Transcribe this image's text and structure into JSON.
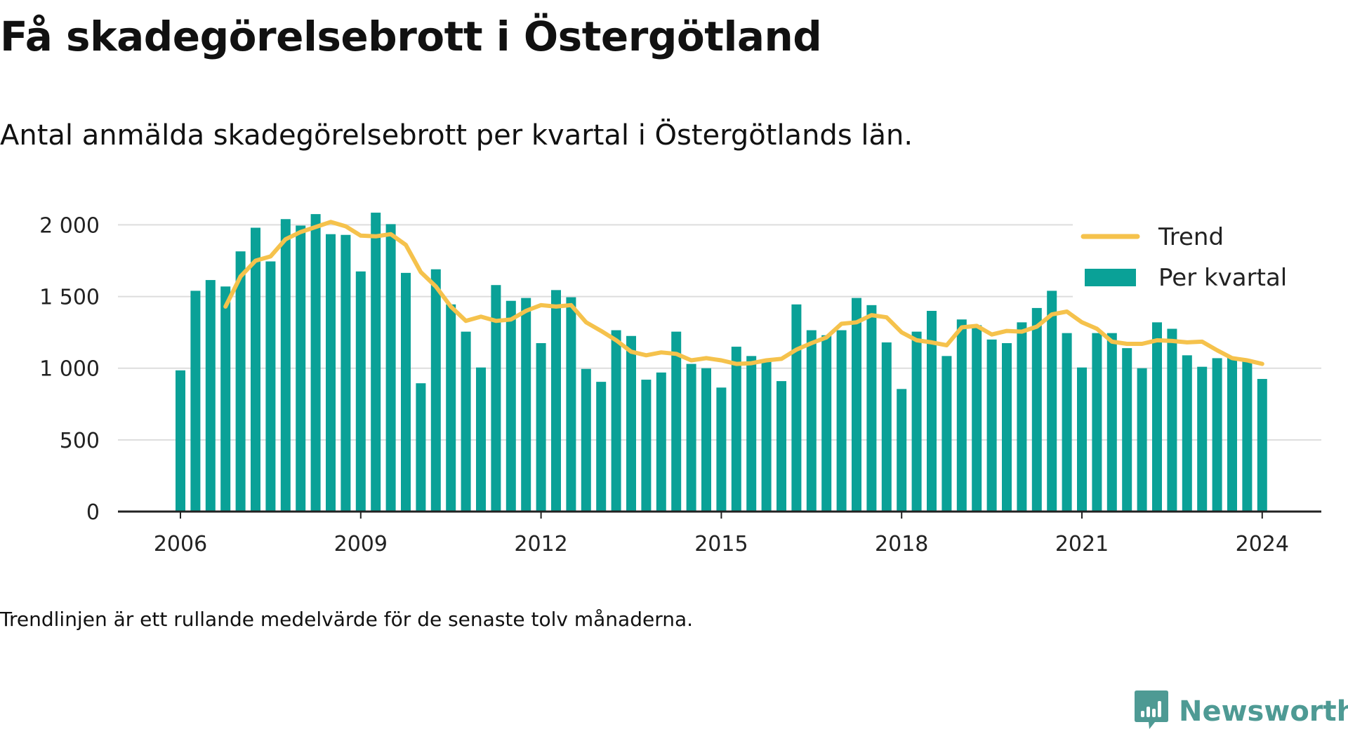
{
  "header": {
    "title": "Få skadegörelsebrott i Östergötland",
    "subtitle": "Antal anmälda skadegörelsebrott per kvartal i Östergötlands län."
  },
  "footnote": "Trendlinjen är ett rullande medelvärde för de senaste tolv månaderna.",
  "brand": {
    "name": "Newsworthy",
    "icon": "newsworthy-logo-icon",
    "color": "#4e9a94"
  },
  "chart_data": {
    "type": "bar",
    "ylim": [
      0,
      2100
    ],
    "yticks": [
      0,
      500,
      1000,
      1500,
      2000
    ],
    "ytick_labels": [
      "0",
      "500",
      "1 000",
      "1 500",
      "2 000"
    ],
    "xticks": [
      "2006",
      "2009",
      "2012",
      "2015",
      "2018",
      "2021",
      "2024"
    ],
    "grid": true,
    "legend_position": "top-right",
    "legend": [
      "Trend",
      "Per kvartal"
    ],
    "colors": {
      "bars": "#0aa197",
      "trend": "#f5c24c",
      "grid": "#dddddd",
      "axis": "#222222"
    },
    "categories": [
      "2006 Q1",
      "2006 Q2",
      "2006 Q3",
      "2006 Q4",
      "2007 Q1",
      "2007 Q2",
      "2007 Q3",
      "2007 Q4",
      "2008 Q1",
      "2008 Q2",
      "2008 Q3",
      "2008 Q4",
      "2009 Q1",
      "2009 Q2",
      "2009 Q3",
      "2009 Q4",
      "2010 Q1",
      "2010 Q2",
      "2010 Q3",
      "2010 Q4",
      "2011 Q1",
      "2011 Q2",
      "2011 Q3",
      "2011 Q4",
      "2012 Q1",
      "2012 Q2",
      "2012 Q3",
      "2012 Q4",
      "2013 Q1",
      "2013 Q2",
      "2013 Q3",
      "2013 Q4",
      "2014 Q1",
      "2014 Q2",
      "2014 Q3",
      "2014 Q4",
      "2015 Q1",
      "2015 Q2",
      "2015 Q3",
      "2015 Q4",
      "2016 Q1",
      "2016 Q2",
      "2016 Q3",
      "2016 Q4",
      "2017 Q1",
      "2017 Q2",
      "2017 Q3",
      "2017 Q4",
      "2018 Q1",
      "2018 Q2",
      "2018 Q3",
      "2018 Q4",
      "2019 Q1",
      "2019 Q2",
      "2019 Q3",
      "2019 Q4",
      "2020 Q1",
      "2020 Q2",
      "2020 Q3",
      "2020 Q4",
      "2021 Q1",
      "2021 Q2",
      "2021 Q3",
      "2021 Q4",
      "2022 Q1",
      "2022 Q2",
      "2022 Q3",
      "2022 Q4",
      "2023 Q1",
      "2023 Q2",
      "2023 Q3",
      "2023 Q4",
      "2024 Q1"
    ],
    "series": [
      {
        "name": "Per kvartal",
        "type": "bar",
        "values": [
          985,
          1540,
          1615,
          1570,
          1815,
          1980,
          1745,
          2040,
          1995,
          2075,
          1935,
          1930,
          1675,
          2085,
          2005,
          1665,
          895,
          1690,
          1445,
          1255,
          1005,
          1580,
          1470,
          1490,
          1175,
          1545,
          1495,
          995,
          905,
          1265,
          1225,
          920,
          970,
          1255,
          1030,
          1000,
          865,
          1150,
          1085,
          1050,
          910,
          1445,
          1265,
          1230,
          1265,
          1490,
          1440,
          1180,
          855,
          1255,
          1400,
          1085,
          1340,
          1300,
          1200,
          1175,
          1320,
          1420,
          1540,
          1245,
          1005,
          1245,
          1245,
          1140,
          1000,
          1320,
          1275,
          1090,
          1010,
          1070,
          1075,
          1045,
          925
        ]
      },
      {
        "name": "Trend",
        "type": "line",
        "values": [
          null,
          null,
          null,
          1430,
          1640,
          1750,
          1780,
          1900,
          1950,
          1985,
          2020,
          1990,
          1925,
          1920,
          1935,
          1860,
          1670,
          1570,
          1430,
          1330,
          1360,
          1330,
          1340,
          1400,
          1440,
          1430,
          1440,
          1320,
          1260,
          1195,
          1115,
          1090,
          1110,
          1100,
          1055,
          1070,
          1055,
          1030,
          1035,
          1055,
          1065,
          1130,
          1175,
          1215,
          1310,
          1320,
          1370,
          1355,
          1250,
          1195,
          1180,
          1160,
          1285,
          1295,
          1235,
          1260,
          1255,
          1290,
          1375,
          1395,
          1320,
          1275,
          1185,
          1170,
          1170,
          1195,
          1190,
          1180,
          1185,
          1125,
          1070,
          1055,
          1030
        ]
      }
    ]
  }
}
